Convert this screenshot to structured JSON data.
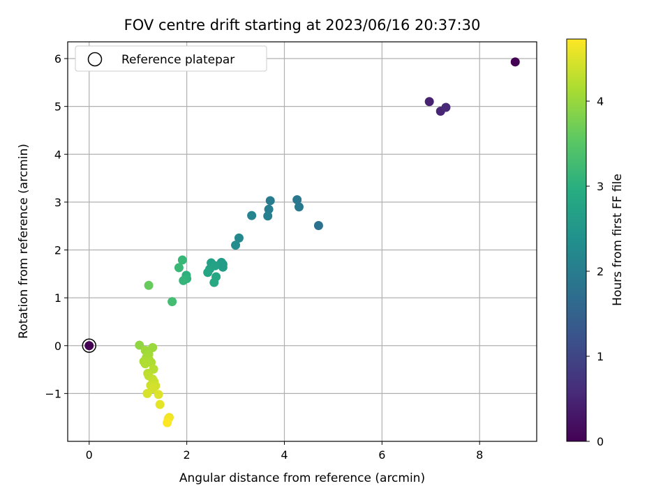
{
  "chart_data": {
    "type": "scatter",
    "title": "FOV centre drift starting at 2023/06/16 20:37:30",
    "xlabel": "Angular distance from reference (arcmin)",
    "ylabel": "Rotation from reference (arcmin)",
    "xlim": [
      -0.44,
      9.17
    ],
    "ylim": [
      -2.0,
      6.35
    ],
    "xticks": [
      0,
      2,
      4,
      6,
      8
    ],
    "xtick_labels": [
      "0",
      "2",
      "4",
      "6",
      "8"
    ],
    "yticks": [
      -1,
      0,
      1,
      2,
      3,
      4,
      5,
      6
    ],
    "ytick_labels": [
      "−1",
      "0",
      "1",
      "2",
      "3",
      "4",
      "5",
      "6"
    ],
    "grid": true,
    "legend": {
      "placement": "top-left",
      "entries": [
        "Reference platepar"
      ]
    },
    "reference_point": {
      "x": 0,
      "y": 0
    },
    "colorbar": {
      "label": "Hours from first FF file",
      "colormap": "viridis",
      "range": [
        0,
        4.73
      ],
      "ticks": [
        0,
        1,
        2,
        3,
        4
      ],
      "tick_labels": [
        "0",
        "1",
        "2",
        "3",
        "4"
      ]
    },
    "points": [
      {
        "x": 8.73,
        "y": 5.93,
        "hours": 0.0
      },
      {
        "x": 6.97,
        "y": 5.1,
        "hours": 0.45
      },
      {
        "x": 7.2,
        "y": 4.9,
        "hours": 0.5
      },
      {
        "x": 7.31,
        "y": 4.98,
        "hours": 0.55
      },
      {
        "x": 0.0,
        "y": 0.0,
        "hours": 0.0
      },
      {
        "x": 4.7,
        "y": 2.51,
        "hours": 1.78
      },
      {
        "x": 4.26,
        "y": 3.05,
        "hours": 1.88
      },
      {
        "x": 4.3,
        "y": 2.9,
        "hours": 1.92
      },
      {
        "x": 3.71,
        "y": 3.03,
        "hours": 1.98
      },
      {
        "x": 3.68,
        "y": 2.85,
        "hours": 2.02
      },
      {
        "x": 3.66,
        "y": 2.71,
        "hours": 2.06
      },
      {
        "x": 3.33,
        "y": 2.72,
        "hours": 2.14
      },
      {
        "x": 3.07,
        "y": 2.25,
        "hours": 2.22
      },
      {
        "x": 3.0,
        "y": 2.1,
        "hours": 2.28
      },
      {
        "x": 2.74,
        "y": 1.7,
        "hours": 2.55
      },
      {
        "x": 2.71,
        "y": 1.74,
        "hours": 2.6
      },
      {
        "x": 2.74,
        "y": 1.64,
        "hours": 2.63
      },
      {
        "x": 2.5,
        "y": 1.73,
        "hours": 2.7
      },
      {
        "x": 2.58,
        "y": 1.67,
        "hours": 2.73
      },
      {
        "x": 2.47,
        "y": 1.6,
        "hours": 2.76
      },
      {
        "x": 2.43,
        "y": 1.53,
        "hours": 2.8
      },
      {
        "x": 2.6,
        "y": 1.44,
        "hours": 2.84
      },
      {
        "x": 2.56,
        "y": 1.32,
        "hours": 2.88
      },
      {
        "x": 1.99,
        "y": 1.47,
        "hours": 3.02
      },
      {
        "x": 2.0,
        "y": 1.4,
        "hours": 3.06
      },
      {
        "x": 1.93,
        "y": 1.36,
        "hours": 3.1
      },
      {
        "x": 1.91,
        "y": 1.79,
        "hours": 3.15
      },
      {
        "x": 1.84,
        "y": 1.63,
        "hours": 3.18
      },
      {
        "x": 1.7,
        "y": 0.92,
        "hours": 3.28
      },
      {
        "x": 1.22,
        "y": 1.26,
        "hours": 3.62
      },
      {
        "x": 1.03,
        "y": 0.01,
        "hours": 3.95
      },
      {
        "x": 1.3,
        "y": -0.04,
        "hours": 4.02
      },
      {
        "x": 1.15,
        "y": -0.1,
        "hours": 4.05
      },
      {
        "x": 1.22,
        "y": -0.18,
        "hours": 4.08
      },
      {
        "x": 1.17,
        "y": -0.25,
        "hours": 4.1
      },
      {
        "x": 1.23,
        "y": -0.3,
        "hours": 4.12
      },
      {
        "x": 1.12,
        "y": -0.33,
        "hours": 4.14
      },
      {
        "x": 1.27,
        "y": -0.35,
        "hours": 4.16
      },
      {
        "x": 1.15,
        "y": -0.38,
        "hours": 4.18
      },
      {
        "x": 1.32,
        "y": -0.49,
        "hours": 4.22
      },
      {
        "x": 1.2,
        "y": -0.58,
        "hours": 4.25
      },
      {
        "x": 1.22,
        "y": -0.63,
        "hours": 4.28
      },
      {
        "x": 1.3,
        "y": -0.7,
        "hours": 4.32
      },
      {
        "x": 1.33,
        "y": -0.75,
        "hours": 4.35
      },
      {
        "x": 1.26,
        "y": -0.83,
        "hours": 4.38
      },
      {
        "x": 1.36,
        "y": -0.84,
        "hours": 4.4
      },
      {
        "x": 1.3,
        "y": -0.9,
        "hours": 4.43
      },
      {
        "x": 1.19,
        "y": -1.0,
        "hours": 4.46
      },
      {
        "x": 1.42,
        "y": -1.02,
        "hours": 4.5
      },
      {
        "x": 1.45,
        "y": -1.23,
        "hours": 4.55
      },
      {
        "x": 1.64,
        "y": -1.5,
        "hours": 4.62
      },
      {
        "x": 1.62,
        "y": -1.53,
        "hours": 4.65
      },
      {
        "x": 1.6,
        "y": -1.61,
        "hours": 4.73
      }
    ]
  }
}
